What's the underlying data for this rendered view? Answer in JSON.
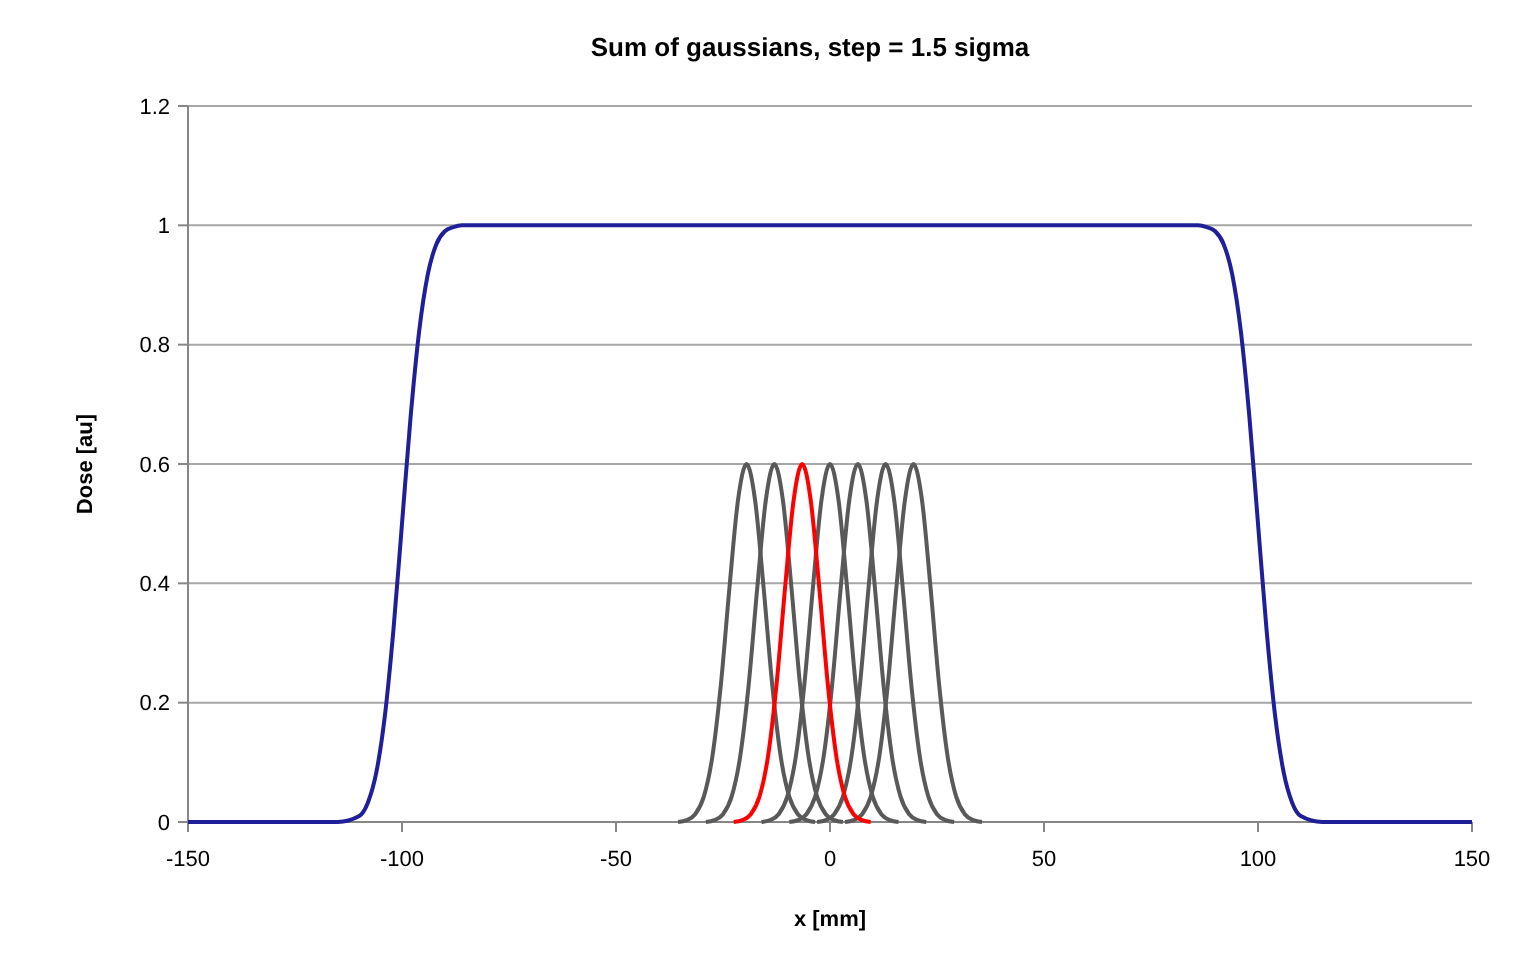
{
  "chart_data": {
    "type": "line",
    "title": "Sum of gaussians, step = 1.5 sigma",
    "xlabel": "x [mm]",
    "ylabel": "Dose [au]",
    "xlim": [
      -150,
      150
    ],
    "xticks": [
      -150,
      -100,
      -50,
      0,
      50,
      100,
      150
    ],
    "ylim": [
      0,
      1.2
    ],
    "yticks": [
      0,
      0.2,
      0.4,
      0.6,
      0.8,
      1,
      1.2
    ],
    "grid": "y",
    "marker": "none",
    "line_style": "solid",
    "series": [
      {
        "color": "#1f1f9a",
        "x": [
          -150,
          -115,
          -110,
          -108,
          -106,
          -104,
          -102,
          -100,
          -98,
          -96,
          -94,
          -92,
          -90,
          -88,
          -86,
          86,
          88,
          90,
          92,
          94,
          96,
          98,
          100,
          102,
          104,
          106,
          108,
          110,
          115,
          150
        ],
        "values": [
          0,
          0,
          0.01,
          0.032,
          0.083,
          0.178,
          0.322,
          0.5,
          0.678,
          0.822,
          0.917,
          0.968,
          0.99,
          0.997,
          1,
          1,
          0.997,
          0.99,
          0.968,
          0.917,
          0.822,
          0.678,
          0.5,
          0.322,
          0.178,
          0.083,
          0.032,
          0.01,
          0,
          0
        ]
      },
      {
        "color": "#595959",
        "x": [
          -35.5,
          -33.5,
          -31.5,
          -29.5,
          -27.5,
          -25.5,
          -23.5,
          -21.5,
          -19.5,
          -17.5,
          -15.5,
          -13.5,
          -11.5,
          -9.5,
          -7.5,
          -5.5,
          -3.5
        ],
        "values": [
          0,
          0.003,
          0.013,
          0.042,
          0.109,
          0.23,
          0.392,
          0.539,
          0.6,
          0.539,
          0.392,
          0.23,
          0.109,
          0.042,
          0.013,
          0.003,
          0
        ]
      },
      {
        "color": "#595959",
        "x": [
          -29,
          -27,
          -25,
          -23,
          -21,
          -19,
          -17,
          -15,
          -13,
          -11,
          -9,
          -7,
          -5,
          -3,
          -1,
          1,
          3
        ],
        "values": [
          0,
          0.003,
          0.013,
          0.042,
          0.109,
          0.23,
          0.392,
          0.539,
          0.6,
          0.539,
          0.392,
          0.23,
          0.109,
          0.042,
          0.013,
          0.003,
          0
        ]
      },
      {
        "color": "#595959",
        "x": [
          -16,
          -14,
          -12,
          -10,
          -8,
          -6,
          -4,
          -2,
          0,
          2,
          4,
          6,
          8,
          10,
          12,
          14,
          16
        ],
        "values": [
          0,
          0.003,
          0.013,
          0.042,
          0.109,
          0.23,
          0.392,
          0.539,
          0.6,
          0.539,
          0.392,
          0.23,
          0.109,
          0.042,
          0.013,
          0.003,
          0
        ]
      },
      {
        "color": "#595959",
        "x": [
          -9.5,
          -7.5,
          -5.5,
          -3.5,
          -1.5,
          0.5,
          2.5,
          4.5,
          6.5,
          8.5,
          10.5,
          12.5,
          14.5,
          16.5,
          18.5,
          20.5,
          22.5
        ],
        "values": [
          0,
          0.003,
          0.013,
          0.042,
          0.109,
          0.23,
          0.392,
          0.539,
          0.6,
          0.539,
          0.392,
          0.23,
          0.109,
          0.042,
          0.013,
          0.003,
          0
        ]
      },
      {
        "color": "#595959",
        "x": [
          -3,
          -1,
          1,
          3,
          5,
          7,
          9,
          11,
          13,
          15,
          17,
          19,
          21,
          23,
          25,
          27,
          29
        ],
        "values": [
          0,
          0.003,
          0.013,
          0.042,
          0.109,
          0.23,
          0.392,
          0.539,
          0.6,
          0.539,
          0.392,
          0.23,
          0.109,
          0.042,
          0.013,
          0.003,
          0
        ]
      },
      {
        "color": "#595959",
        "x": [
          3.5,
          5.5,
          7.5,
          9.5,
          11.5,
          13.5,
          15.5,
          17.5,
          19.5,
          21.5,
          23.5,
          25.5,
          27.5,
          29.5,
          31.5,
          33.5,
          35.5
        ],
        "values": [
          0,
          0.003,
          0.013,
          0.042,
          0.109,
          0.23,
          0.392,
          0.539,
          0.6,
          0.539,
          0.392,
          0.23,
          0.109,
          0.042,
          0.013,
          0.003,
          0
        ]
      },
      {
        "color": "#ff0000",
        "x": [
          -22.5,
          -20.5,
          -18.5,
          -16.5,
          -14.5,
          -12.5,
          -10.5,
          -8.5,
          -6.5,
          -4.5,
          -2.5,
          -0.5,
          1.5,
          3.5,
          5.5,
          7.5,
          9.5
        ],
        "values": [
          0,
          0.003,
          0.013,
          0.042,
          0.109,
          0.23,
          0.392,
          0.539,
          0.6,
          0.539,
          0.392,
          0.23,
          0.109,
          0.042,
          0.013,
          0.003,
          0
        ]
      }
    ]
  }
}
